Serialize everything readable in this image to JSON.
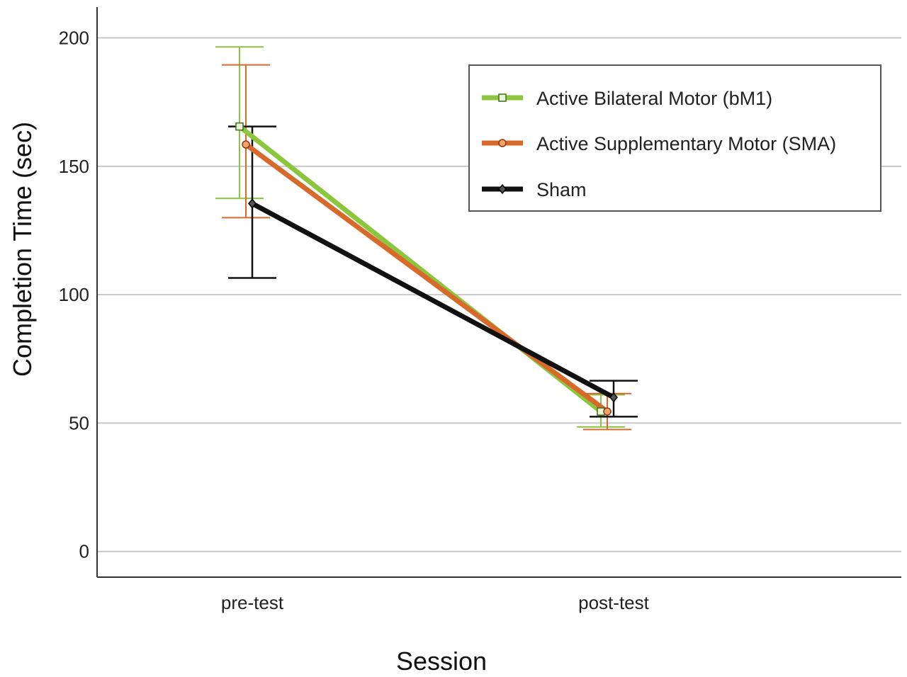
{
  "chart_data": {
    "type": "line",
    "xlabel": "Session",
    "ylabel": "Completion Time (sec)",
    "categories": [
      "pre-test",
      "post-test"
    ],
    "yticks": [
      "0",
      "50",
      "100",
      "150",
      "200"
    ],
    "ylim": [
      -10,
      212
    ],
    "grid": true,
    "legend_position": "top-right",
    "series": [
      {
        "name": "Active Bilateral Motor (bM1)",
        "color": "#8cc63f",
        "marker": "square",
        "values": [
          165.5,
          54.5
        ],
        "error_low": [
          137.5,
          48.5
        ],
        "error_high": [
          196.5,
          61
        ]
      },
      {
        "name": "Active Supplementary Motor (SMA)",
        "color": "#d9692a",
        "marker": "circle",
        "values": [
          158.5,
          54.5
        ],
        "error_low": [
          130,
          47.5
        ],
        "error_high": [
          189.5,
          61.5
        ]
      },
      {
        "name": "Sham",
        "color": "#111111",
        "marker": "diamond",
        "values": [
          135.5,
          60
        ],
        "error_low": [
          106.5,
          52.5
        ],
        "error_high": [
          165.5,
          66.5
        ]
      }
    ]
  }
}
